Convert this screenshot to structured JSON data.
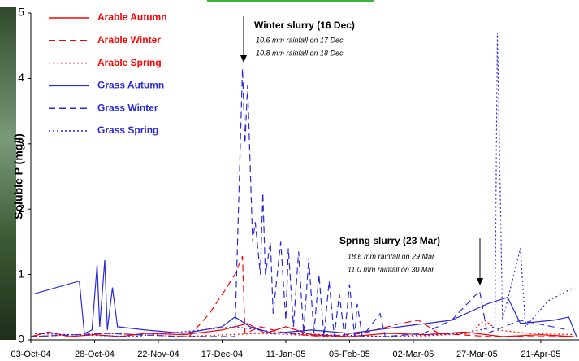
{
  "chart_data": {
    "type": "line",
    "y_label": "Soluble P (mg/l)",
    "xlim": [
      "2004-10-03",
      "2005-05-06"
    ],
    "xticks": [
      {
        "value": "2004-10-03",
        "label": "03-Oct-04"
      },
      {
        "value": "2004-10-28",
        "label": "28-Oct-04"
      },
      {
        "value": "2004-11-22",
        "label": "22-Nov-04"
      },
      {
        "value": "2004-12-17",
        "label": "17-Dec-04"
      },
      {
        "value": "2005-01-11",
        "label": "11-Jan-05"
      },
      {
        "value": "2005-02-05",
        "label": "05-Feb-05"
      },
      {
        "value": "2005-03-02",
        "label": "02-Mar-05"
      },
      {
        "value": "2005-03-27",
        "label": "27-Mar-05"
      },
      {
        "value": "2005-04-21",
        "label": "21-Apr-05"
      }
    ],
    "ylim": [
      0,
      5
    ],
    "yticks": [
      0,
      1,
      2,
      3,
      4,
      5
    ],
    "grid": false,
    "legend": "top-left",
    "annotations": [
      [
        "Winter slurry (16 Dec)",
        "10.6 mm rainfall on 17 Dec",
        "10.8 mm rainfall on 18 Dec"
      ],
      [
        "Spring slurry (23 Mar)",
        "18.6 mm rainfall on 29 Mar",
        "11.0 mm rainfall on 30 Mar"
      ]
    ],
    "series": [
      {
        "name": "Arable Autumn",
        "color": "#ff0000",
        "style": "solid",
        "x": [
          "2004-10-03",
          "2004-10-10",
          "2004-10-18",
          "2004-10-28",
          "2004-11-07",
          "2004-11-17",
          "2004-12-02",
          "2004-12-17",
          "2004-12-27",
          "2005-01-03",
          "2005-01-11",
          "2005-01-21",
          "2005-02-05",
          "2005-02-20",
          "2005-03-07",
          "2005-03-22",
          "2005-04-06",
          "2005-04-21",
          "2005-05-04"
        ],
        "values": [
          0.05,
          0.12,
          0.05,
          0.08,
          0.05,
          0.1,
          0.08,
          0.15,
          0.25,
          0.1,
          0.2,
          0.08,
          0.05,
          0.1,
          0.08,
          0.12,
          0.05,
          0.08,
          0.05
        ]
      },
      {
        "name": "Arable Winter",
        "color": "#ff0000",
        "style": "dashed",
        "x": [
          "2004-12-04",
          "2004-12-12",
          "2004-12-18",
          "2004-12-22",
          "2004-12-25",
          "2004-12-26",
          "2005-01-01",
          "2005-01-11",
          "2005-01-26",
          "2005-02-10",
          "2005-02-25",
          "2005-03-04",
          "2005-03-12",
          "2005-04-01",
          "2005-04-21",
          "2005-05-04"
        ],
        "values": [
          0.05,
          0.4,
          0.75,
          1.0,
          1.28,
          0.1,
          0.2,
          0.1,
          0.05,
          0.1,
          0.25,
          0.3,
          0.1,
          0.05,
          0.05,
          0.05
        ]
      },
      {
        "name": "Arable Spring",
        "color": "#ff0000",
        "style": "dotted",
        "x": [
          "2004-10-03",
          "2004-11-02",
          "2004-12-02",
          "2005-01-01",
          "2005-01-31",
          "2005-03-02",
          "2005-03-24",
          "2005-03-30",
          "2005-04-04",
          "2005-04-16",
          "2005-05-04"
        ],
        "values": [
          0.05,
          0.1,
          0.05,
          0.1,
          0.05,
          0.05,
          0.1,
          0.3,
          0.15,
          0.1,
          0.08
        ]
      },
      {
        "name": "Grass Autumn",
        "color": "#2a2ad8",
        "style": "solid",
        "x": [
          "2004-10-04",
          "2004-10-22",
          "2004-10-24",
          "2004-10-27",
          "2004-10-29",
          "2004-10-30",
          "2004-11-01",
          "2004-11-02",
          "2004-11-04",
          "2004-11-06",
          "2004-11-17",
          "2004-12-02",
          "2004-12-17",
          "2004-12-22",
          "2004-12-28",
          "2005-01-06",
          "2005-01-21",
          "2005-02-05",
          "2005-02-25",
          "2005-03-17",
          "2005-03-31",
          "2005-04-08",
          "2005-04-13",
          "2005-04-26",
          "2005-05-02",
          "2005-05-05"
        ],
        "values": [
          0.7,
          0.9,
          0.1,
          0.15,
          1.15,
          0.2,
          1.22,
          0.15,
          0.8,
          0.2,
          0.15,
          0.1,
          0.2,
          0.35,
          0.2,
          0.1,
          0.15,
          0.1,
          0.2,
          0.3,
          0.55,
          0.65,
          0.25,
          0.3,
          0.35,
          0.05
        ]
      },
      {
        "name": "Grass Winter",
        "color": "#2a2ad8",
        "style": "dashed",
        "x": [
          "2004-10-03",
          "2004-11-02",
          "2004-12-02",
          "2004-12-22",
          "2004-12-25",
          "2004-12-26",
          "2004-12-27",
          "2004-12-29",
          "2004-12-30",
          "2005-01-01",
          "2005-01-02",
          "2005-01-03",
          "2005-01-05",
          "2005-01-06",
          "2005-01-09",
          "2005-01-11",
          "2005-01-12",
          "2005-01-14",
          "2005-01-16",
          "2005-01-18",
          "2005-01-20",
          "2005-01-22",
          "2005-01-24",
          "2005-01-26",
          "2005-01-28",
          "2005-01-30",
          "2005-02-01",
          "2005-02-03",
          "2005-02-05",
          "2005-02-07",
          "2005-02-08",
          "2005-02-10",
          "2005-02-17",
          "2005-02-19",
          "2005-03-06",
          "2005-03-17",
          "2005-03-28",
          "2005-03-31",
          "2005-04-13",
          "2005-05-02"
        ],
        "values": [
          0.05,
          0.1,
          0.05,
          0.05,
          4.15,
          3.0,
          3.9,
          1.5,
          1.8,
          1.0,
          2.25,
          1.0,
          1.5,
          0.4,
          1.5,
          0.3,
          1.4,
          0.2,
          1.35,
          0.1,
          1.25,
          0.1,
          1.0,
          0.05,
          0.9,
          0.05,
          0.7,
          0.05,
          0.85,
          0.05,
          0.55,
          0.05,
          0.4,
          0.05,
          0.1,
          0.3,
          0.75,
          0.1,
          0.3,
          0.15
        ]
      },
      {
        "name": "Grass Spring",
        "color": "#2a2ad8",
        "style": "dotted",
        "x": [
          "2004-10-03",
          "2004-11-12",
          "2004-12-22",
          "2005-01-11",
          "2005-02-20",
          "2005-03-22",
          "2005-04-03",
          "2005-04-04",
          "2005-04-06",
          "2005-04-13",
          "2005-04-15",
          "2005-04-24",
          "2005-05-04"
        ],
        "values": [
          0.1,
          0.05,
          0.2,
          0.1,
          0.05,
          0.1,
          0.2,
          4.7,
          0.3,
          1.4,
          0.2,
          0.6,
          0.8
        ]
      }
    ]
  }
}
